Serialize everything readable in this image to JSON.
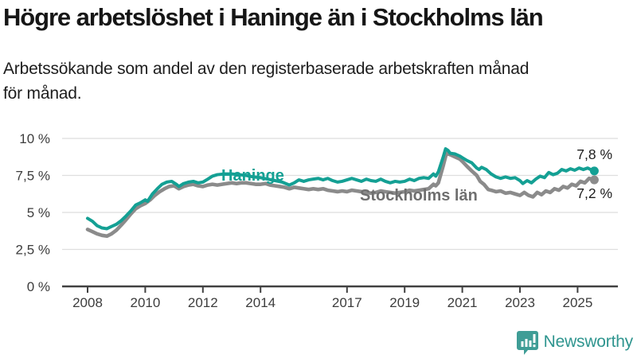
{
  "header": {
    "title": "Högre arbetslöshet i Haninge än i Stockholms län",
    "subtitle_lines": [
      "Arbetssökande som andel av den registerbaserade arbetskraften månad",
      "för månad."
    ]
  },
  "chart_data": {
    "type": "line",
    "title": "Högre arbetslöshet i Haninge än i Stockholms län",
    "subtitle": "Arbetssökande som andel av den registerbaserade arbetskraften månad för månad.",
    "unit": "%",
    "grid": true,
    "legend_position": "inline-labels",
    "ylim": [
      0,
      10
    ],
    "xlim": [
      2008.0,
      2025.58
    ],
    "y_axis": {
      "ticks": [
        {
          "label": "0 %",
          "value": 0
        },
        {
          "label": "2,5 %",
          "value": 2.5
        },
        {
          "label": "5 %",
          "value": 5
        },
        {
          "label": "7,5 %",
          "value": 7.5
        },
        {
          "label": "10 %",
          "value": 10
        }
      ]
    },
    "x_axis": {
      "ticks": [
        {
          "label": "2008",
          "year": 2008
        },
        {
          "label": "2010",
          "year": 2010
        },
        {
          "label": "2012",
          "year": 2012
        },
        {
          "label": "2014",
          "year": 2014
        },
        {
          "label": "2017",
          "year": 2017
        },
        {
          "label": "2019",
          "year": 2019
        },
        {
          "label": "2021",
          "year": 2021
        },
        {
          "label": "2023",
          "year": 2023
        },
        {
          "label": "2025",
          "year": 2025
        }
      ]
    },
    "series": [
      {
        "name": "Stockholms län",
        "color": "#8b8b8b",
        "label_color": "#6f6f6f",
        "end_label": "7,2 %",
        "end_value": 7.2,
        "points": [
          [
            2008.0,
            3.85
          ],
          [
            2008.17,
            3.7
          ],
          [
            2008.33,
            3.55
          ],
          [
            2008.5,
            3.45
          ],
          [
            2008.67,
            3.4
          ],
          [
            2008.83,
            3.55
          ],
          [
            2009.0,
            3.8
          ],
          [
            2009.17,
            4.15
          ],
          [
            2009.33,
            4.5
          ],
          [
            2009.5,
            4.9
          ],
          [
            2009.67,
            5.25
          ],
          [
            2009.83,
            5.45
          ],
          [
            2010.0,
            5.6
          ],
          [
            2010.17,
            5.85
          ],
          [
            2010.33,
            6.15
          ],
          [
            2010.5,
            6.4
          ],
          [
            2010.67,
            6.6
          ],
          [
            2010.83,
            6.75
          ],
          [
            2011.0,
            6.8
          ],
          [
            2011.17,
            6.6
          ],
          [
            2011.33,
            6.75
          ],
          [
            2011.5,
            6.85
          ],
          [
            2011.67,
            6.9
          ],
          [
            2011.83,
            6.8
          ],
          [
            2012.0,
            6.75
          ],
          [
            2012.17,
            6.85
          ],
          [
            2012.33,
            6.9
          ],
          [
            2012.5,
            6.85
          ],
          [
            2012.67,
            6.9
          ],
          [
            2012.83,
            6.95
          ],
          [
            2013.0,
            7.0
          ],
          [
            2013.17,
            6.95
          ],
          [
            2013.33,
            7.0
          ],
          [
            2013.5,
            7.0
          ],
          [
            2013.67,
            6.95
          ],
          [
            2013.83,
            6.9
          ],
          [
            2014.0,
            6.9
          ],
          [
            2014.17,
            6.95
          ],
          [
            2014.33,
            6.85
          ],
          [
            2014.5,
            6.8
          ],
          [
            2014.67,
            6.75
          ],
          [
            2014.83,
            6.7
          ],
          [
            2015.0,
            6.6
          ],
          [
            2015.17,
            6.7
          ],
          [
            2015.33,
            6.65
          ],
          [
            2015.5,
            6.6
          ],
          [
            2015.67,
            6.55
          ],
          [
            2015.83,
            6.6
          ],
          [
            2016.0,
            6.55
          ],
          [
            2016.17,
            6.6
          ],
          [
            2016.33,
            6.5
          ],
          [
            2016.5,
            6.45
          ],
          [
            2016.67,
            6.4
          ],
          [
            2016.83,
            6.45
          ],
          [
            2017.0,
            6.4
          ],
          [
            2017.17,
            6.5
          ],
          [
            2017.33,
            6.45
          ],
          [
            2017.5,
            6.4
          ],
          [
            2017.67,
            6.35
          ],
          [
            2017.83,
            6.3
          ],
          [
            2018.0,
            6.35
          ],
          [
            2018.17,
            6.45
          ],
          [
            2018.33,
            6.4
          ],
          [
            2018.5,
            6.35
          ],
          [
            2018.67,
            6.3
          ],
          [
            2018.83,
            6.35
          ],
          [
            2019.0,
            6.4
          ],
          [
            2019.17,
            6.5
          ],
          [
            2019.33,
            6.45
          ],
          [
            2019.5,
            6.5
          ],
          [
            2019.67,
            6.55
          ],
          [
            2019.83,
            6.6
          ],
          [
            2020.0,
            6.9
          ],
          [
            2020.08,
            6.8
          ],
          [
            2020.17,
            7.0
          ],
          [
            2020.33,
            8.1
          ],
          [
            2020.45,
            9.0
          ],
          [
            2020.58,
            8.9
          ],
          [
            2020.75,
            8.75
          ],
          [
            2020.92,
            8.6
          ],
          [
            2021.0,
            8.45
          ],
          [
            2021.17,
            8.1
          ],
          [
            2021.33,
            7.8
          ],
          [
            2021.5,
            7.5
          ],
          [
            2021.62,
            7.1
          ],
          [
            2021.75,
            6.9
          ],
          [
            2021.9,
            6.55
          ],
          [
            2022.0,
            6.5
          ],
          [
            2022.17,
            6.4
          ],
          [
            2022.33,
            6.45
          ],
          [
            2022.5,
            6.3
          ],
          [
            2022.67,
            6.35
          ],
          [
            2022.83,
            6.25
          ],
          [
            2023.0,
            6.15
          ],
          [
            2023.15,
            6.35
          ],
          [
            2023.3,
            6.15
          ],
          [
            2023.45,
            6.05
          ],
          [
            2023.6,
            6.35
          ],
          [
            2023.75,
            6.2
          ],
          [
            2023.9,
            6.45
          ],
          [
            2024.05,
            6.35
          ],
          [
            2024.2,
            6.6
          ],
          [
            2024.35,
            6.5
          ],
          [
            2024.5,
            6.75
          ],
          [
            2024.65,
            6.65
          ],
          [
            2024.8,
            6.9
          ],
          [
            2024.95,
            6.8
          ],
          [
            2025.1,
            7.1
          ],
          [
            2025.25,
            7.0
          ],
          [
            2025.4,
            7.3
          ],
          [
            2025.58,
            7.2
          ]
        ]
      },
      {
        "name": "Haninge",
        "color": "#14a094",
        "label_color": "#14a094",
        "end_label": "7,8 %",
        "end_value": 7.8,
        "points": [
          [
            2008.0,
            4.6
          ],
          [
            2008.17,
            4.4
          ],
          [
            2008.33,
            4.1
          ],
          [
            2008.5,
            3.95
          ],
          [
            2008.67,
            3.9
          ],
          [
            2008.83,
            4.05
          ],
          [
            2009.0,
            4.2
          ],
          [
            2009.17,
            4.45
          ],
          [
            2009.33,
            4.75
          ],
          [
            2009.5,
            5.1
          ],
          [
            2009.67,
            5.5
          ],
          [
            2009.83,
            5.65
          ],
          [
            2010.0,
            5.85
          ],
          [
            2010.08,
            5.75
          ],
          [
            2010.25,
            6.25
          ],
          [
            2010.42,
            6.6
          ],
          [
            2010.58,
            6.9
          ],
          [
            2010.75,
            7.05
          ],
          [
            2010.92,
            7.1
          ],
          [
            2011.08,
            6.9
          ],
          [
            2011.17,
            6.75
          ],
          [
            2011.33,
            6.95
          ],
          [
            2011.5,
            7.05
          ],
          [
            2011.67,
            7.1
          ],
          [
            2011.83,
            7.0
          ],
          [
            2012.0,
            7.05
          ],
          [
            2012.17,
            7.25
          ],
          [
            2012.33,
            7.45
          ],
          [
            2012.5,
            7.55
          ],
          [
            2012.75,
            7.6
          ],
          [
            2013.0,
            7.6
          ],
          [
            2013.25,
            7.55
          ],
          [
            2013.5,
            7.5
          ],
          [
            2013.75,
            7.4
          ],
          [
            2014.0,
            7.35
          ],
          [
            2014.25,
            7.25
          ],
          [
            2014.5,
            7.15
          ],
          [
            2014.75,
            7.05
          ],
          [
            2015.0,
            6.85
          ],
          [
            2015.17,
            7.0
          ],
          [
            2015.33,
            7.2
          ],
          [
            2015.5,
            7.1
          ],
          [
            2015.67,
            7.2
          ],
          [
            2015.83,
            7.25
          ],
          [
            2016.0,
            7.3
          ],
          [
            2016.17,
            7.2
          ],
          [
            2016.33,
            7.3
          ],
          [
            2016.5,
            7.15
          ],
          [
            2016.67,
            7.05
          ],
          [
            2016.83,
            7.1
          ],
          [
            2017.0,
            7.2
          ],
          [
            2017.17,
            7.3
          ],
          [
            2017.33,
            7.2
          ],
          [
            2017.5,
            7.1
          ],
          [
            2017.67,
            7.25
          ],
          [
            2017.83,
            7.15
          ],
          [
            2018.0,
            7.1
          ],
          [
            2018.17,
            7.25
          ],
          [
            2018.33,
            7.1
          ],
          [
            2018.5,
            7.0
          ],
          [
            2018.67,
            7.1
          ],
          [
            2018.83,
            7.05
          ],
          [
            2019.0,
            7.1
          ],
          [
            2019.17,
            7.25
          ],
          [
            2019.33,
            7.15
          ],
          [
            2019.5,
            7.3
          ],
          [
            2019.67,
            7.35
          ],
          [
            2019.83,
            7.3
          ],
          [
            2020.0,
            7.6
          ],
          [
            2020.08,
            7.45
          ],
          [
            2020.17,
            7.75
          ],
          [
            2020.33,
            8.7
          ],
          [
            2020.42,
            9.3
          ],
          [
            2020.5,
            9.2
          ],
          [
            2020.58,
            9.0
          ],
          [
            2020.75,
            8.95
          ],
          [
            2020.92,
            8.8
          ],
          [
            2021.0,
            8.7
          ],
          [
            2021.17,
            8.5
          ],
          [
            2021.33,
            8.35
          ],
          [
            2021.5,
            8.0
          ],
          [
            2021.58,
            7.9
          ],
          [
            2021.67,
            8.05
          ],
          [
            2021.83,
            7.9
          ],
          [
            2022.0,
            7.6
          ],
          [
            2022.17,
            7.4
          ],
          [
            2022.33,
            7.3
          ],
          [
            2022.5,
            7.4
          ],
          [
            2022.67,
            7.3
          ],
          [
            2022.83,
            7.35
          ],
          [
            2023.0,
            7.15
          ],
          [
            2023.1,
            6.95
          ],
          [
            2023.25,
            7.15
          ],
          [
            2023.4,
            7.0
          ],
          [
            2023.55,
            7.25
          ],
          [
            2023.7,
            7.45
          ],
          [
            2023.85,
            7.35
          ],
          [
            2024.0,
            7.7
          ],
          [
            2024.15,
            7.55
          ],
          [
            2024.3,
            7.65
          ],
          [
            2024.45,
            7.9
          ],
          [
            2024.6,
            7.8
          ],
          [
            2024.75,
            7.95
          ],
          [
            2024.9,
            7.85
          ],
          [
            2025.05,
            8.0
          ],
          [
            2025.2,
            7.9
          ],
          [
            2025.35,
            8.0
          ],
          [
            2025.5,
            7.85
          ],
          [
            2025.58,
            7.8
          ]
        ]
      }
    ],
    "colors": {
      "grid": "#dedede",
      "axis": "#414141",
      "tick_label": "#3d3d3d",
      "end_label": "#1c1c1c"
    }
  },
  "footer": {
    "brand": "Newsworthy",
    "brand_color": "#2f958f",
    "logo_icon": "newsworthy-speech-bubble-chart-icon"
  }
}
